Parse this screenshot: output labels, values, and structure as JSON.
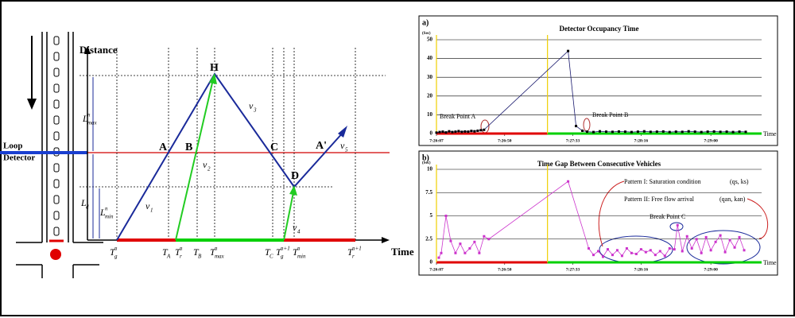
{
  "diagram": {
    "distance_label": "Distance",
    "time_label": "Time",
    "detector_label": [
      "Loop",
      "Detector"
    ],
    "labels": [
      {
        "base": "H"
      },
      {
        "base": "A"
      },
      {
        "base": "B"
      },
      {
        "base": "C"
      },
      {
        "base": "D"
      },
      {
        "base": "A'"
      },
      {
        "base": "v",
        "sub": "1"
      },
      {
        "base": "v",
        "sub": "2"
      },
      {
        "base": "v",
        "sub": "3"
      },
      {
        "base": "v",
        "sub": "4"
      },
      {
        "base": "v",
        "sub": "5"
      },
      {
        "base": "L",
        "sup": "n",
        "sub": "max"
      },
      {
        "base": "L",
        "sub": "d"
      },
      {
        "base": "L",
        "sup": "n",
        "sub": "min"
      },
      {
        "base": "T",
        "sup": "n",
        "sub": "g"
      },
      {
        "base": "T",
        "sub": "A"
      },
      {
        "base": "T",
        "sup": "n",
        "sub": "r"
      },
      {
        "base": "T",
        "sub": "B"
      },
      {
        "base": "T",
        "sup": "n",
        "sub": "max"
      },
      {
        "base": "T",
        "sub": "C"
      },
      {
        "base": "T",
        "sup": "n+1",
        "sub": "g"
      },
      {
        "base": "T",
        "sup": "n",
        "sub": "min"
      },
      {
        "base": "T",
        "sup": "n+1",
        "sub": "r"
      }
    ]
  },
  "chart_data": [
    {
      "type": "line",
      "panel_label": "a)",
      "title": "Detector Occupancy Time",
      "y_label": "(Sec)",
      "x_label": "Time",
      "xlim": [
        0,
        205
      ],
      "xticks": [
        {
          "value": 0,
          "label": "7:26:07"
        },
        {
          "value": 43,
          "label": "7:26:50"
        },
        {
          "value": 86,
          "label": "7:27:33"
        },
        {
          "value": 129,
          "label": "7:28:16"
        },
        {
          "value": 173,
          "label": "7:29:00"
        }
      ],
      "ylim": [
        0,
        50
      ],
      "yticks": [
        0,
        10,
        20,
        30,
        40,
        50
      ],
      "grid": true,
      "color": "#1a1a6e",
      "marker_color": "#000000",
      "signal_color": "#f0d000",
      "phases": [
        {
          "color": "#e00000",
          "start": 0,
          "end": 70
        },
        {
          "color": "#00d000",
          "start": 70,
          "end": 205
        }
      ],
      "x": [
        0,
        2,
        4,
        6,
        8,
        10,
        12,
        14,
        16,
        18,
        20,
        22,
        24,
        26,
        28,
        30,
        83,
        88,
        92,
        95,
        99,
        103,
        107,
        111,
        115,
        119,
        123,
        127,
        131,
        135,
        139,
        143,
        147,
        151,
        155,
        159,
        163,
        167,
        171,
        175,
        179,
        183,
        187,
        191,
        195
      ],
      "values": [
        0.5,
        0.8,
        1,
        0.6,
        1.2,
        0.8,
        1,
        1.3,
        0.9,
        1.1,
        1,
        1.4,
        1.2,
        1.5,
        1.8,
        2,
        44,
        4,
        1.5,
        1,
        0.8,
        1.2,
        1,
        0.9,
        1.1,
        1,
        0.8,
        1,
        1.2,
        0.9,
        1,
        1.1,
        0.8,
        1,
        0.9,
        1.2,
        1,
        0.8,
        1,
        1.1,
        0.9,
        1,
        0.8,
        1,
        0.9
      ],
      "annotations": [
        "Break Point A",
        "Break Point B"
      ]
    },
    {
      "type": "line",
      "panel_label": "b)",
      "title": "Time Gap Between Consecutive Vehicles",
      "y_label": "(Sec)",
      "x_label": "Time",
      "xlim": [
        0,
        205
      ],
      "xticks": [
        {
          "value": 0,
          "label": "7:26:07"
        },
        {
          "value": 43,
          "label": "7:26:50"
        },
        {
          "value": 86,
          "label": "7:27:33"
        },
        {
          "value": 129,
          "label": "7:28:16"
        },
        {
          "value": 173,
          "label": "7:29:00"
        }
      ],
      "ylim": [
        0,
        10
      ],
      "yticks": [
        0,
        2.5,
        5,
        7.5,
        10
      ],
      "grid": true,
      "color": "#cc33cc",
      "marker_color": "#cc33cc",
      "signal_color": "#f0d000",
      "phases": [
        {
          "color": "#e00000",
          "start": 0,
          "end": 70
        },
        {
          "color": "#00d000",
          "start": 70,
          "end": 205
        }
      ],
      "x": [
        1.5,
        3,
        6,
        9,
        12,
        15,
        18,
        21,
        24,
        27,
        30,
        33,
        83,
        96,
        99,
        102,
        105,
        108,
        111,
        114,
        117,
        120,
        123,
        126,
        129,
        132,
        135,
        138,
        141,
        144,
        147,
        150,
        152,
        155,
        158,
        161,
        164,
        167,
        170,
        173,
        176,
        179,
        182,
        185,
        188,
        191,
        194
      ],
      "values": [
        0.5,
        1,
        5,
        2.3,
        1,
        2,
        1,
        1.5,
        2.2,
        1,
        2.8,
        2.5,
        8.7,
        1.5,
        0.8,
        1.2,
        0.6,
        1.4,
        0.8,
        1.3,
        0.7,
        1.5,
        1,
        0.9,
        1.4,
        1.1,
        1.3,
        0.8,
        1.2,
        0.7,
        1.5,
        1.4,
        4,
        1.2,
        2.8,
        1.5,
        2.5,
        1,
        2.7,
        1.3,
        2.2,
        2.9,
        1.1,
        2.4,
        1.6,
        2.7,
        1.3
      ],
      "annotations": [
        "Pattern I: Saturation condition",
        "(qs, ks)",
        "Pattern II: Free flow arrival",
        "(qan, kan)",
        "Break Point C"
      ]
    }
  ]
}
